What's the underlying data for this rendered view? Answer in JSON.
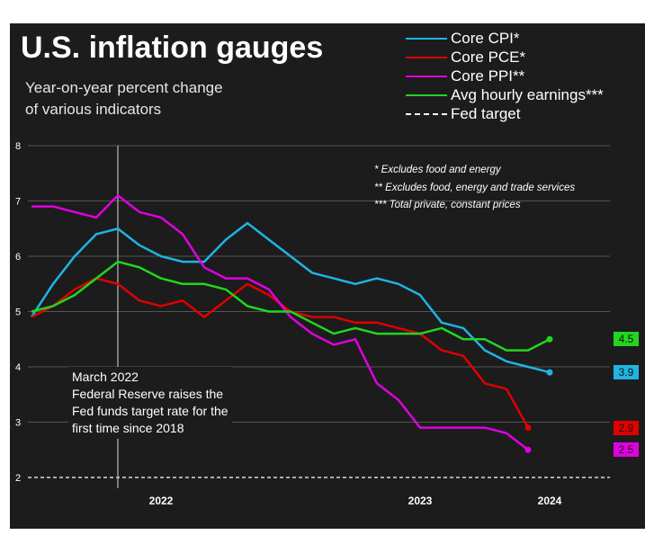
{
  "title": "U.S. inflation gauges",
  "subtitle_line1": "Year-on-year percent change",
  "subtitle_line2": "of various indicators",
  "legend": [
    {
      "label": "Core CPI*",
      "color": "#1fb4e4",
      "dashed": false
    },
    {
      "label": "Core PCE*",
      "color": "#e00000",
      "dashed": false
    },
    {
      "label": "Core PPI**",
      "color": "#e000e0",
      "dashed": false
    },
    {
      "label": "Avg hourly earnings***",
      "color": "#22d61f",
      "dashed": false
    },
    {
      "label": "Fed target",
      "color": "#ffffff",
      "dashed": true
    }
  ],
  "notes": [
    "* Excludes food and energy",
    "** Excludes food, energy and trade services",
    "*** Total private, constant prices"
  ],
  "annotation": [
    "March 2022",
    "Federal Reserve raises the",
    "Fed funds target rate for the",
    "first time since 2018"
  ],
  "end_labels": [
    {
      "series": "Avg hourly earnings***",
      "text": "4.5",
      "color": "#22d61f"
    },
    {
      "series": "Core CPI*",
      "text": "3.9",
      "color": "#1fb4e4"
    },
    {
      "series": "Core PCE*",
      "text": "2.9",
      "color": "#e00000"
    },
    {
      "series": "Core PPI**",
      "text": "2.5",
      "color": "#e000e0"
    }
  ],
  "chart_data": {
    "type": "line",
    "title": "U.S. inflation gauges",
    "ylabel": "Year-on-year percent change",
    "xlabel": "",
    "ylim": [
      2,
      8
    ],
    "yticks": [
      2,
      3,
      4,
      5,
      6,
      7,
      8
    ],
    "grid": true,
    "x_start": "2021-11",
    "x_end": "2024-01",
    "xtick_labels": [
      {
        "label": "2022",
        "month_index": 6
      },
      {
        "label": "2023",
        "month_index": 18
      },
      {
        "label": "2024",
        "month_index": 24
      }
    ],
    "fed_target": 2,
    "march_2022_month_index": 4,
    "series": [
      {
        "name": "Core CPI*",
        "color": "#1fb4e4",
        "months": [
          "2021-11",
          "2021-12",
          "2022-01",
          "2022-02",
          "2022-03",
          "2022-04",
          "2022-05",
          "2022-06",
          "2022-07",
          "2022-08",
          "2022-09",
          "2022-10",
          "2022-11",
          "2022-12",
          "2023-01",
          "2023-02",
          "2023-03",
          "2023-04",
          "2023-05",
          "2023-06",
          "2023-07",
          "2023-08",
          "2023-09",
          "2023-10",
          "2023-11"
        ],
        "values": [
          4.9,
          5.5,
          6.0,
          6.4,
          6.5,
          6.2,
          6.0,
          5.9,
          5.9,
          6.3,
          6.6,
          6.3,
          6.0,
          5.7,
          5.6,
          5.5,
          5.6,
          5.5,
          5.3,
          4.8,
          4.7,
          4.3,
          4.1,
          4.0,
          3.9
        ]
      },
      {
        "name": "Core PCE*",
        "color": "#e00000",
        "months": [
          "2021-11",
          "2021-12",
          "2022-01",
          "2022-02",
          "2022-03",
          "2022-04",
          "2022-05",
          "2022-06",
          "2022-07",
          "2022-08",
          "2022-09",
          "2022-10",
          "2022-11",
          "2022-12",
          "2023-01",
          "2023-02",
          "2023-03",
          "2023-04",
          "2023-05",
          "2023-06",
          "2023-07",
          "2023-08",
          "2023-09",
          "2023-10"
        ],
        "values": [
          4.9,
          5.1,
          5.4,
          5.6,
          5.5,
          5.2,
          5.1,
          5.2,
          4.9,
          5.2,
          5.5,
          5.3,
          5.0,
          4.9,
          4.9,
          4.8,
          4.8,
          4.7,
          4.6,
          4.3,
          4.2,
          3.7,
          3.6,
          2.9
        ]
      },
      {
        "name": "Core PPI**",
        "color": "#e000e0",
        "months": [
          "2021-11",
          "2021-12",
          "2022-01",
          "2022-02",
          "2022-03",
          "2022-04",
          "2022-05",
          "2022-06",
          "2022-07",
          "2022-08",
          "2022-09",
          "2022-10",
          "2022-11",
          "2022-12",
          "2023-01",
          "2023-02",
          "2023-03",
          "2023-04",
          "2023-05",
          "2023-06",
          "2023-07",
          "2023-08",
          "2023-09",
          "2023-10"
        ],
        "values": [
          6.9,
          6.9,
          6.8,
          6.7,
          7.1,
          6.8,
          6.7,
          6.4,
          5.8,
          5.6,
          5.6,
          5.4,
          4.9,
          4.6,
          4.4,
          4.5,
          3.7,
          3.4,
          2.9,
          2.9,
          2.9,
          2.9,
          2.8,
          2.5
        ]
      },
      {
        "name": "Avg hourly earnings***",
        "color": "#22d61f",
        "months": [
          "2021-11",
          "2021-12",
          "2022-01",
          "2022-02",
          "2022-03",
          "2022-04",
          "2022-05",
          "2022-06",
          "2022-07",
          "2022-08",
          "2022-09",
          "2022-10",
          "2022-11",
          "2022-12",
          "2023-01",
          "2023-02",
          "2023-03",
          "2023-04",
          "2023-05",
          "2023-06",
          "2023-07",
          "2023-08",
          "2023-09",
          "2023-10",
          "2023-11"
        ],
        "values": [
          5.0,
          5.1,
          5.3,
          5.6,
          5.9,
          5.8,
          5.6,
          5.5,
          5.5,
          5.4,
          5.1,
          5.0,
          5.0,
          4.8,
          4.6,
          4.7,
          4.6,
          4.6,
          4.6,
          4.7,
          4.5,
          4.5,
          4.3,
          4.3,
          4.5
        ]
      }
    ]
  }
}
